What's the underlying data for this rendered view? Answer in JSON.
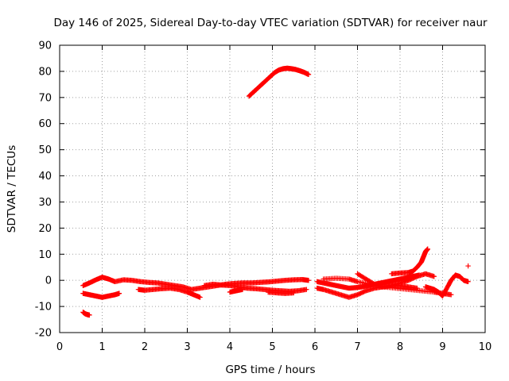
{
  "chart_data": {
    "type": "scatter",
    "title": "Day 146 of 2025, Sidereal Day-to-day VTEC variation (SDTVAR) for receiver naur",
    "xlabel": "GPS time / hours",
    "ylabel": "SDTVAR / TECUs",
    "xlim": [
      0,
      10
    ],
    "ylim": [
      -20,
      90
    ],
    "xticks": [
      0,
      1,
      2,
      3,
      4,
      5,
      6,
      7,
      8,
      9,
      10
    ],
    "yticks": [
      -20,
      -10,
      0,
      10,
      20,
      30,
      40,
      50,
      60,
      70,
      80,
      90
    ],
    "grid": true,
    "marker": "plus",
    "color": "#ff0000",
    "series": [
      {
        "x": [
          0.55,
          0.6,
          0.65,
          0.7
        ],
        "y": [
          -12.2,
          -12.8,
          -13.1,
          -13.3
        ]
      },
      {
        "x": [
          4.45,
          4.55,
          4.65,
          4.75,
          4.85,
          4.95,
          5.05,
          5.15,
          5.25,
          5.35,
          5.45,
          5.55,
          5.65,
          5.75,
          5.85
        ],
        "y": [
          70.5,
          72.0,
          73.5,
          75.0,
          76.5,
          78.0,
          79.5,
          80.5,
          81.0,
          81.2,
          81.0,
          80.7,
          80.2,
          79.6,
          78.8
        ]
      },
      {
        "x": [
          0.55,
          0.7,
          0.85,
          1.0,
          1.15,
          1.3,
          1.5,
          1.7,
          1.9,
          2.1,
          2.3,
          2.5,
          2.7,
          2.9,
          3.1,
          3.3,
          3.5,
          3.7,
          3.9,
          4.1,
          4.3,
          4.5,
          4.7,
          4.9,
          5.1,
          5.3,
          5.5,
          5.7,
          5.85
        ],
        "y": [
          -2.0,
          -1.0,
          0.2,
          1.2,
          0.5,
          -0.5,
          0.2,
          0.0,
          -0.5,
          -0.8,
          -1.0,
          -1.5,
          -2.0,
          -2.5,
          -3.5,
          -3.0,
          -2.5,
          -2.0,
          -1.5,
          -1.2,
          -1.0,
          -1.0,
          -0.8,
          -0.6,
          -0.3,
          0.0,
          0.2,
          0.3,
          0.0
        ]
      },
      {
        "x": [
          0.55,
          0.7,
          0.85,
          1.0,
          1.15,
          1.3,
          1.4
        ],
        "y": [
          -5.0,
          -5.5,
          -6.0,
          -6.5,
          -6.0,
          -5.5,
          -5.0
        ]
      },
      {
        "x": [
          1.85,
          2.0,
          2.2,
          2.4,
          2.6,
          2.8,
          3.0,
          3.15,
          3.3
        ],
        "y": [
          -3.5,
          -3.8,
          -3.5,
          -3.2,
          -3.0,
          -3.5,
          -4.5,
          -5.5,
          -6.5
        ]
      },
      {
        "x": [
          3.4,
          3.6,
          3.8,
          4.0,
          4.2,
          4.4,
          4.6,
          4.8,
          5.0,
          5.2,
          5.4,
          5.6,
          5.8
        ],
        "y": [
          -2.0,
          -1.5,
          -1.8,
          -2.0,
          -2.5,
          -3.0,
          -3.2,
          -3.5,
          -3.8,
          -4.0,
          -4.2,
          -4.0,
          -3.5
        ]
      },
      {
        "x": [
          4.0,
          4.15,
          4.3
        ],
        "y": [
          -4.5,
          -4.0,
          -3.5
        ]
      },
      {
        "x": [
          4.9,
          5.1,
          5.3,
          5.5
        ],
        "y": [
          -4.5,
          -4.8,
          -5.0,
          -4.8
        ]
      },
      {
        "x": [
          6.05,
          6.2,
          6.35,
          6.5,
          6.65,
          6.8,
          6.95,
          7.1,
          7.25,
          7.4,
          7.55,
          7.7,
          7.85,
          8.0,
          8.15,
          8.3,
          8.45
        ],
        "y": [
          -0.5,
          -1.0,
          -1.5,
          -2.0,
          -2.5,
          -3.0,
          -2.8,
          -2.5,
          -2.0,
          -1.5,
          -1.0,
          -0.5,
          0.0,
          0.5,
          1.0,
          1.5,
          2.0
        ]
      },
      {
        "x": [
          6.05,
          6.2,
          6.4,
          6.6,
          6.8,
          7.0,
          7.2,
          7.4,
          7.6,
          7.8,
          8.0,
          8.2,
          8.4
        ],
        "y": [
          -3.0,
          -3.5,
          -4.5,
          -5.5,
          -6.5,
          -5.5,
          -4.0,
          -3.0,
          -2.5,
          -2.0,
          -2.0,
          -2.5,
          -3.0
        ]
      },
      {
        "x": [
          6.2,
          6.5,
          6.8,
          7.0,
          7.3,
          7.6,
          7.9,
          8.2,
          8.5,
          8.8,
          9.0,
          9.2
        ],
        "y": [
          0.5,
          0.8,
          0.5,
          -0.5,
          -1.5,
          -2.5,
          -3.0,
          -3.5,
          -4.0,
          -4.5,
          -5.0,
          -5.5
        ]
      },
      {
        "x": [
          7.0,
          7.2,
          7.4,
          7.6,
          7.8,
          8.0,
          8.2,
          8.4,
          8.6,
          8.8
        ],
        "y": [
          2.5,
          0.5,
          -1.5,
          -2.5,
          -2.0,
          -1.0,
          0.0,
          1.5,
          2.5,
          1.5
        ]
      },
      {
        "x": [
          7.8,
          8.0,
          8.2,
          8.3,
          8.4,
          8.5,
          8.55,
          8.6,
          8.65
        ],
        "y": [
          2.5,
          2.8,
          3.0,
          3.5,
          5.0,
          7.0,
          9.0,
          11.0,
          12.0
        ]
      },
      {
        "x": [
          8.6,
          8.7,
          8.8,
          8.9,
          9.0,
          9.1,
          9.2,
          9.3,
          9.4,
          9.5,
          9.6
        ],
        "y": [
          -2.5,
          -3.0,
          -3.5,
          -4.5,
          -6.0,
          -3.0,
          0.0,
          2.0,
          1.5,
          0.0,
          -0.5
        ]
      },
      {
        "x": [
          9.6
        ],
        "y": [
          5.5
        ]
      }
    ]
  }
}
